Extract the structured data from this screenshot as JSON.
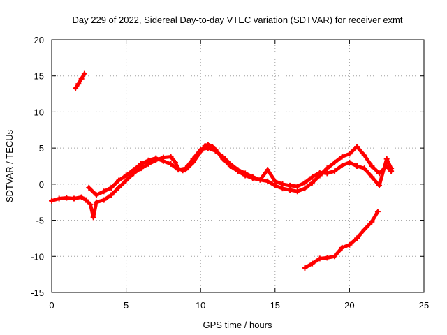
{
  "chart_data": {
    "type": "scatter",
    "title": "Day 229 of 2022, Sidereal Day-to-day VTEC variation (SDTVAR) for receiver exmt",
    "xlabel": "GPS time / hours",
    "ylabel": "SDTVAR / TECUs",
    "xlim": [
      0,
      25
    ],
    "ylim": [
      -15,
      20
    ],
    "x_ticks": [
      0,
      5,
      10,
      15,
      20,
      25
    ],
    "y_ticks": [
      -15,
      -10,
      -5,
      0,
      5,
      10,
      15,
      20
    ],
    "x_tick_labels": [
      "0",
      "5",
      "10",
      "15",
      "20",
      "25"
    ],
    "y_tick_labels": [
      "-15",
      "-10",
      "-5",
      "0",
      "5",
      "10",
      "15",
      "20"
    ],
    "grid": true,
    "series_color": "#ff0000",
    "series": [
      {
        "name": "high-arc",
        "x": [
          1.6,
          1.8,
          2.0,
          2.2
        ],
        "y": [
          13.3,
          13.9,
          14.6,
          15.3
        ]
      },
      {
        "name": "main-a",
        "x": [
          0.0,
          0.5,
          1.0,
          1.5,
          2.0,
          2.3,
          2.6,
          2.8,
          3.0,
          3.5,
          4.0,
          4.5,
          5.0,
          5.5,
          6.0,
          6.5,
          7.0,
          7.5,
          8.0,
          8.3,
          8.5,
          8.8,
          9.0,
          9.5,
          10.0,
          10.3,
          10.5,
          10.8,
          11.0,
          11.5,
          12.0,
          12.5,
          13.0,
          13.5,
          14.0,
          14.5,
          15.0,
          15.5,
          16.0,
          16.5,
          17.0,
          17.5,
          18.0,
          18.5,
          19.0,
          19.5,
          20.0,
          20.5,
          21.0,
          21.5,
          22.0,
          22.5,
          22.8
        ],
        "y": [
          -2.3,
          -2.0,
          -1.9,
          -2.0,
          -1.8,
          -2.2,
          -2.8,
          -4.6,
          -2.5,
          -2.2,
          -1.5,
          -0.5,
          0.5,
          1.5,
          2.2,
          2.8,
          3.3,
          3.7,
          3.8,
          3.0,
          2.2,
          1.9,
          2.0,
          3.0,
          4.5,
          5.3,
          5.5,
          5.2,
          4.8,
          3.5,
          2.5,
          1.8,
          1.2,
          0.8,
          0.6,
          0.4,
          -0.2,
          -0.6,
          -0.8,
          -1.0,
          -0.6,
          0.2,
          1.2,
          2.2,
          3.0,
          3.8,
          4.2,
          5.2,
          4.0,
          2.5,
          1.5,
          2.5,
          1.8
        ]
      },
      {
        "name": "main-b",
        "x": [
          2.5,
          3.0,
          3.5,
          4.0,
          4.5,
          5.0,
          5.5,
          6.0,
          6.5,
          7.0,
          7.5,
          8.0,
          8.5,
          9.0,
          9.5,
          10.0,
          10.5,
          11.0,
          11.5,
          12.0,
          12.5,
          13.0,
          13.5,
          14.0,
          14.5,
          15.0,
          15.5,
          16.0,
          16.5,
          17.0,
          17.5,
          18.0,
          18.5,
          19.0,
          19.5,
          20.0,
          20.5,
          21.0,
          21.5,
          22.0,
          22.5,
          22.8
        ],
        "y": [
          -0.5,
          -1.5,
          -1.0,
          -0.5,
          0.5,
          1.2,
          2.0,
          2.8,
          3.3,
          3.6,
          3.2,
          2.8,
          2.0,
          2.2,
          3.5,
          4.8,
          5.0,
          4.6,
          3.8,
          2.8,
          2.0,
          1.5,
          1.0,
          0.6,
          2.0,
          0.4,
          0.0,
          -0.2,
          -0.3,
          0.2,
          1.0,
          1.6,
          1.5,
          1.8,
          2.6,
          3.0,
          2.5,
          2.2,
          1.0,
          -0.2,
          3.5,
          2.2
        ]
      },
      {
        "name": "low-arc",
        "x": [
          17.0,
          17.5,
          18.0,
          18.5,
          19.0,
          19.5,
          20.0,
          20.5,
          21.0,
          21.5,
          21.9
        ],
        "y": [
          -11.6,
          -11.0,
          -10.3,
          -10.2,
          -10.0,
          -8.8,
          -8.4,
          -7.5,
          -6.3,
          -5.2,
          -3.8
        ]
      }
    ]
  }
}
